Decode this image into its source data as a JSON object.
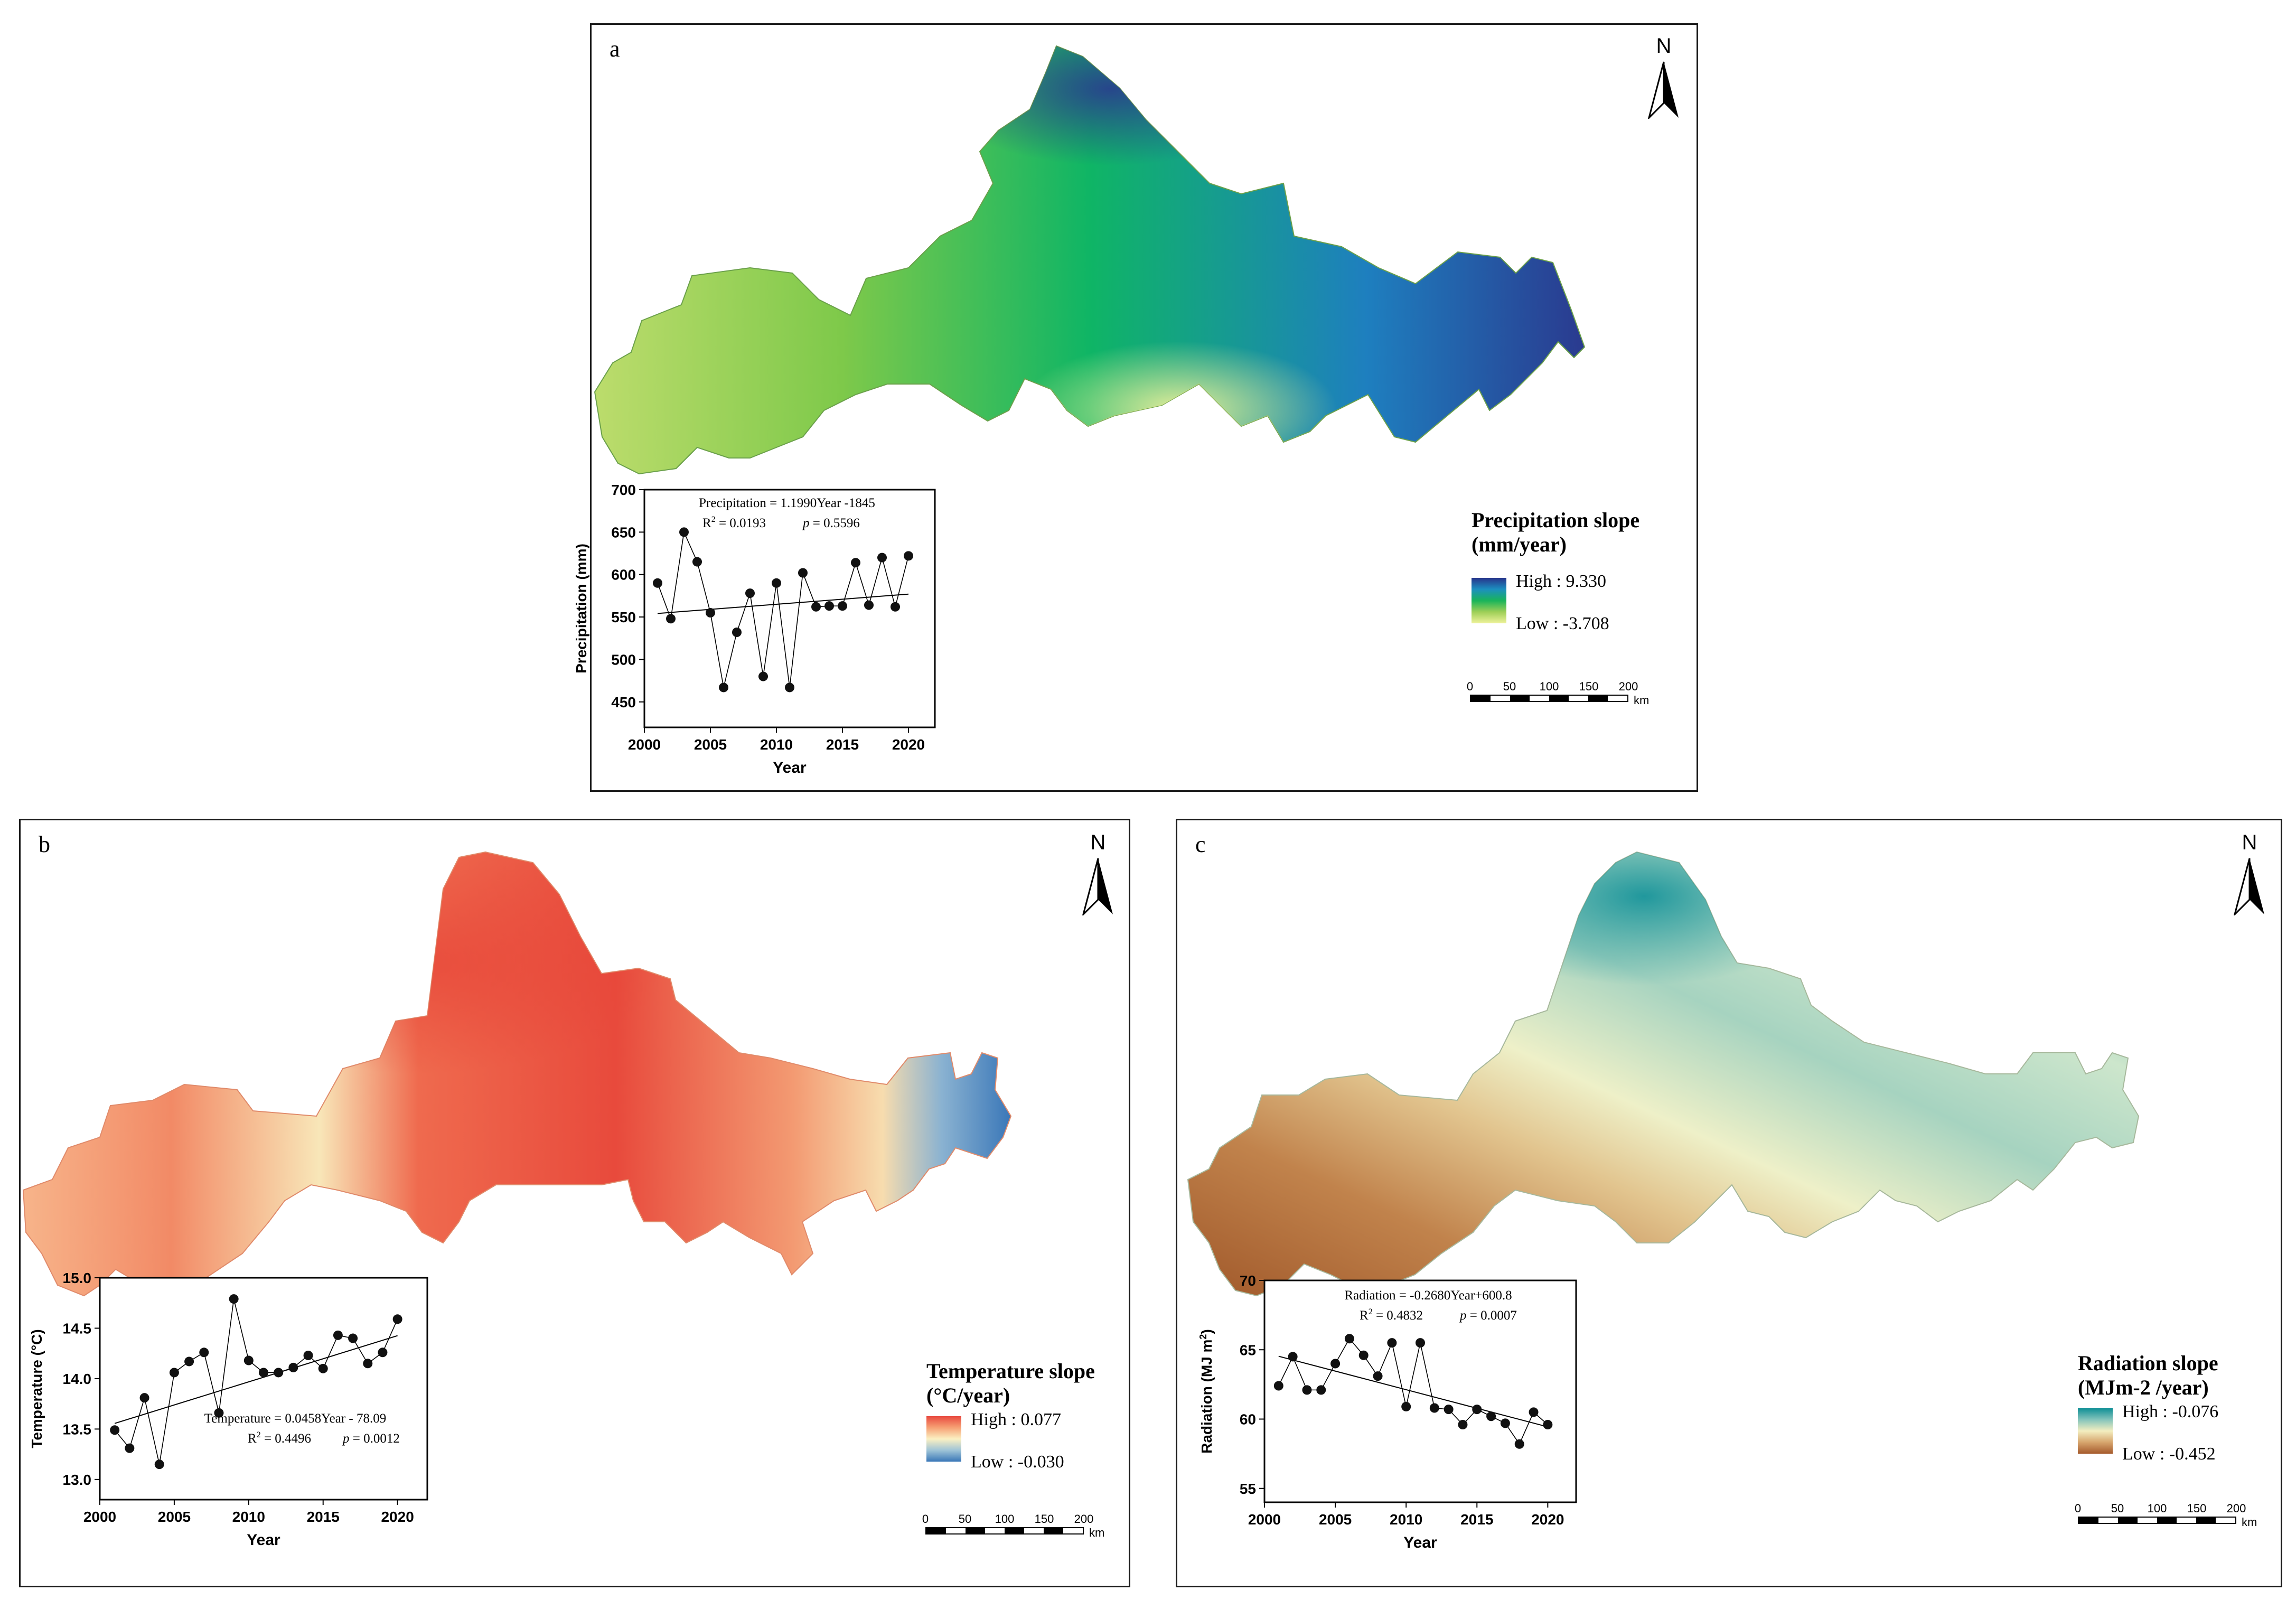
{
  "panels": {
    "a": {
      "label": "a",
      "north": "N",
      "legend": {
        "title_line1": "Precipitation slope",
        "title_line2": "(mm/year)",
        "high": "High : 9.330",
        "low": "Low : -3.708",
        "colors": [
          "#27348b",
          "#1c8fc0",
          "#19b45a",
          "#9ecf57",
          "#eef29a"
        ]
      },
      "scale": {
        "ticks": [
          "0",
          "50",
          "100",
          "150",
          "200"
        ],
        "unit": "km"
      },
      "map_colors": [
        "#2a3a8f",
        "#1e7fbf",
        "#0fb565",
        "#7ec94a",
        "#d7e98a"
      ]
    },
    "b": {
      "label": "b",
      "north": "N",
      "legend": {
        "title_line1": "Temperature slope",
        "title_line2": "(°C/year)",
        "high": "High : 0.077",
        "low": "Low : -0.030",
        "colors": [
          "#e8493f",
          "#f6a074",
          "#fbf0c2",
          "#9fc4d7",
          "#3a77b8"
        ]
      },
      "scale": {
        "ticks": [
          "0",
          "50",
          "100",
          "150",
          "200"
        ],
        "unit": "km"
      },
      "map_colors": [
        "#e53d33",
        "#f06f50",
        "#f7a77d",
        "#f6e7bd",
        "#4d86c0"
      ]
    },
    "c": {
      "label": "c",
      "north": "N",
      "legend": {
        "title_line1": "Radiation slope",
        "title_line2": "(MJm-2 /year)",
        "high": "High : -0.076",
        "low": "Low : -0.452",
        "colors": [
          "#0f8f96",
          "#84c4bb",
          "#f3eec0",
          "#d7a56d",
          "#a55a2c"
        ]
      },
      "scale": {
        "ticks": [
          "0",
          "50",
          "100",
          "150",
          "200"
        ],
        "unit": "km"
      },
      "map_colors": [
        "#0f9098",
        "#7fc3b5",
        "#e6eac0",
        "#d49b5e",
        "#a0582a"
      ]
    }
  },
  "chart_data": [
    {
      "type": "line",
      "panel": "a",
      "title": "",
      "xlabel": "Year",
      "ylabel": "Precipitation (mm)",
      "x": [
        2001,
        2002,
        2003,
        2004,
        2005,
        2006,
        2007,
        2008,
        2009,
        2010,
        2011,
        2012,
        2013,
        2014,
        2015,
        2016,
        2017,
        2018,
        2019,
        2020
      ],
      "values": [
        590,
        548,
        650,
        615,
        555,
        467,
        532,
        578,
        480,
        590,
        467,
        602,
        562,
        563,
        563,
        614,
        564,
        620,
        562,
        622
      ],
      "xlim": [
        2000,
        2022
      ],
      "ylim": [
        420,
        700
      ],
      "xticks": [
        2000,
        2005,
        2010,
        2015,
        2020
      ],
      "yticks": [
        450,
        500,
        550,
        600,
        650,
        700
      ],
      "trend": {
        "slope": 1.199,
        "intercept": -1845
      },
      "equation": "Precipitation = 1.1990Year -1845",
      "r2_label": "R",
      "r2_value": "= 0.0193",
      "p_label": "p",
      "p_value": "= 0.5596"
    },
    {
      "type": "line",
      "panel": "b",
      "title": "",
      "xlabel": "Year",
      "ylabel": "Temperature (°C)",
      "x": [
        2001,
        2002,
        2003,
        2004,
        2005,
        2006,
        2007,
        2008,
        2009,
        2010,
        2011,
        2012,
        2013,
        2014,
        2015,
        2016,
        2017,
        2018,
        2019,
        2020
      ],
      "values": [
        13.49,
        13.31,
        13.81,
        13.15,
        14.06,
        14.17,
        14.26,
        13.66,
        14.79,
        14.18,
        14.06,
        14.06,
        14.11,
        14.23,
        14.1,
        14.43,
        14.4,
        14.15,
        14.26,
        14.59
      ],
      "xlim": [
        2000,
        2022
      ],
      "ylim": [
        12.8,
        15.0
      ],
      "xticks": [
        2000,
        2005,
        2010,
        2015,
        2020
      ],
      "yticks": [
        13.0,
        13.5,
        14.0,
        14.5,
        15.0
      ],
      "trend": {
        "slope": 0.0458,
        "intercept": -78.09
      },
      "equation": "Temperature = 0.0458Year - 78.09",
      "r2_label": "R",
      "r2_value": "= 0.4496",
      "p_label": "p",
      "p_value": "= 0.0012"
    },
    {
      "type": "line",
      "panel": "c",
      "title": "",
      "xlabel": "Year",
      "ylabel": "Radiation (MJ m",
      "x": [
        2001,
        2002,
        2003,
        2004,
        2005,
        2006,
        2007,
        2008,
        2009,
        2010,
        2011,
        2012,
        2013,
        2014,
        2015,
        2016,
        2017,
        2018,
        2019,
        2020
      ],
      "values": [
        62.4,
        64.5,
        62.1,
        62.1,
        64.0,
        65.8,
        64.6,
        63.1,
        65.5,
        60.9,
        65.5,
        60.8,
        60.7,
        59.6,
        60.7,
        60.2,
        59.7,
        58.2,
        60.5,
        59.6
      ],
      "xlim": [
        2000,
        2022
      ],
      "ylim": [
        54,
        70
      ],
      "xticks": [
        2000,
        2005,
        2010,
        2015,
        2020
      ],
      "yticks": [
        55,
        60,
        65,
        70
      ],
      "trend": {
        "slope": -0.268,
        "intercept": 600.8
      },
      "equation": "Radiation = -0.2680Year+600.8",
      "r2_label": "R",
      "r2_value": "= 0.4832",
      "p_label": "p",
      "p_value": "= 0.0007"
    }
  ]
}
